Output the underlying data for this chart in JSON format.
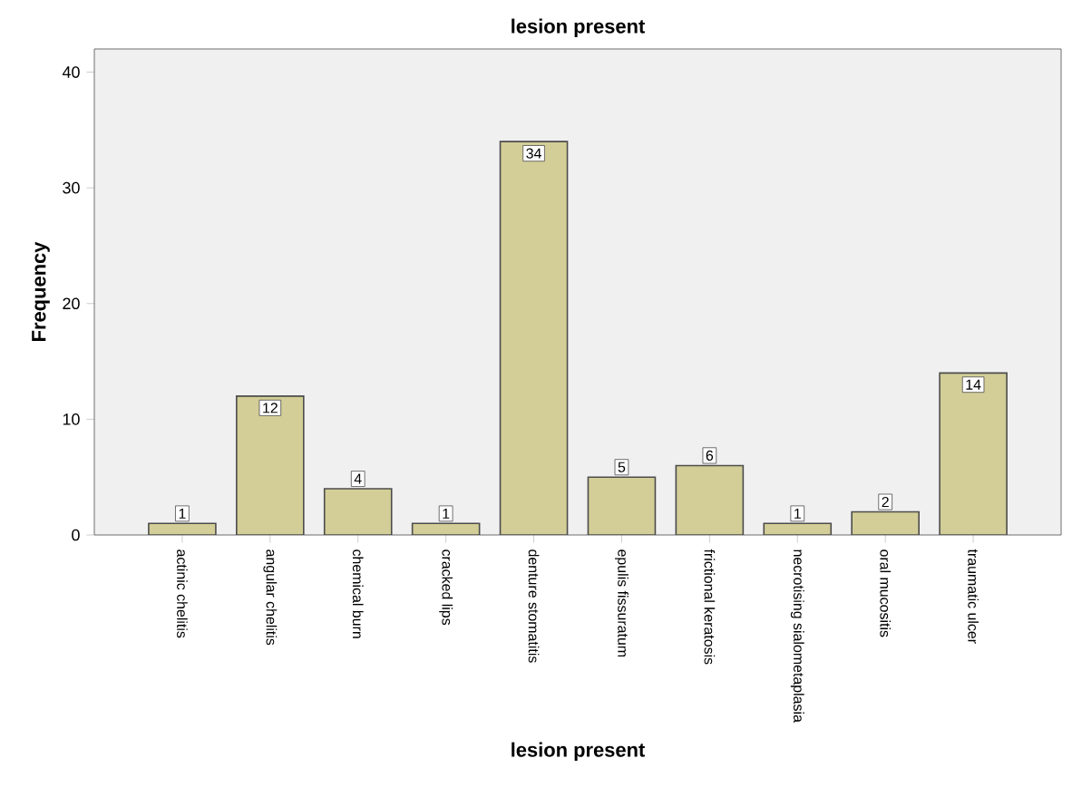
{
  "chart_data": {
    "type": "bar",
    "title": "lesion present",
    "xlabel": "lesion present",
    "ylabel": "Frequency",
    "categories": [
      "actinic chelitis",
      "angular chelitis",
      "chemical burn",
      "cracked lips",
      "denture stomatitis",
      "epulis fissuratum",
      "frictional keratosis",
      "necrotising sialometaplasia",
      "oral mucositis",
      "traumatic ulcer"
    ],
    "values": [
      1,
      12,
      4,
      1,
      34,
      5,
      6,
      1,
      2,
      14
    ],
    "color": "#d3ce97",
    "ylim": [
      0,
      42
    ],
    "yticks": [
      0,
      10,
      20,
      30,
      40
    ],
    "data_labels": true,
    "grid": false
  }
}
